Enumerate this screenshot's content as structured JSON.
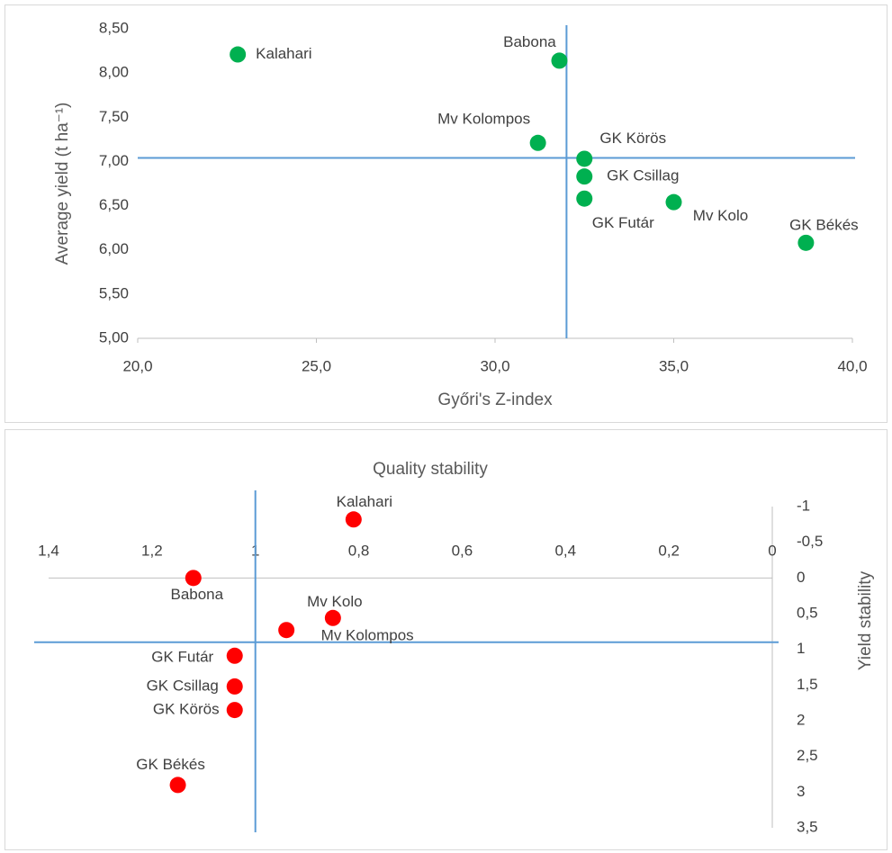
{
  "chart_data": [
    {
      "type": "scatter",
      "x_label": "Győri's Z-index",
      "y_label": "Average yield (t ha⁻¹)",
      "color": "#00b050",
      "labels": [
        "Kalahari",
        "Babona",
        "Mv Kolompos",
        "GK Körös",
        "GK Csillag",
        "GK Futár",
        "Mv Kolo",
        "GK Békés"
      ],
      "x": [
        22.8,
        31.8,
        31.2,
        32.5,
        32.5,
        32.5,
        35.0,
        38.7
      ],
      "y": [
        8.21,
        8.14,
        7.21,
        7.03,
        6.83,
        6.58,
        6.54,
        6.08
      ],
      "xlim": [
        20,
        40
      ],
      "xticks": [
        {
          "value": 20,
          "label": "20,0"
        },
        {
          "value": 25,
          "label": "25,0"
        },
        {
          "value": 30,
          "label": "30,0"
        },
        {
          "value": 35,
          "label": "35,0"
        },
        {
          "value": 40,
          "label": "40,0"
        }
      ],
      "ylim": [
        5,
        8.5
      ],
      "yticks": [
        {
          "value": 5,
          "label": "5,00"
        },
        {
          "value": 5.5,
          "label": "5,50"
        },
        {
          "value": 6,
          "label": "6,00"
        },
        {
          "value": 6.5,
          "label": "6,50"
        },
        {
          "value": 7,
          "label": "7,00"
        },
        {
          "value": 7.5,
          "label": "7,50"
        },
        {
          "value": 8,
          "label": "8,00"
        },
        {
          "value": 8.5,
          "label": "8,50"
        }
      ],
      "reference_lines": {
        "x": 32.0,
        "y": 7.04
      }
    },
    {
      "type": "scatter",
      "x_label": "Quality stability",
      "y_label": "Yield stability",
      "color": "#ff0000",
      "labels": [
        "Kalahari",
        "Babona",
        "Mv Kolo",
        "Mv Kolompos",
        "GK Futár",
        "GK Csillag",
        "GK Körös",
        "GK Békés"
      ],
      "x": [
        0.81,
        1.12,
        0.85,
        0.94,
        1.04,
        1.04,
        1.04,
        1.15
      ],
      "y": [
        -0.82,
        0,
        0.56,
        0.73,
        1.09,
        1.52,
        1.85,
        2.9
      ],
      "xlim": [
        1.4,
        0
      ],
      "xticks": [
        {
          "value": 1.4,
          "label": "1,4"
        },
        {
          "value": 1.2,
          "label": "1,2"
        },
        1,
        {
          "value": 0.8,
          "label": "0,8"
        },
        {
          "value": 0.6,
          "label": "0,6"
        },
        {
          "value": 0.4,
          "label": "0,4"
        },
        {
          "value": 0.2,
          "label": "0,2"
        },
        0
      ],
      "ylim": [
        -1,
        3.5
      ],
      "yticks": [
        -1,
        {
          "value": -0.5,
          "label": "-0,5"
        },
        0,
        {
          "value": 0.5,
          "label": "0,5"
        },
        1,
        {
          "value": 1.5,
          "label": "1,5"
        },
        2,
        {
          "value": 2.5,
          "label": "2,5"
        },
        3,
        {
          "value": 3.5,
          "label": "3,5"
        }
      ],
      "reference_lines": {
        "x": 1.0,
        "y": 0.9
      }
    }
  ]
}
